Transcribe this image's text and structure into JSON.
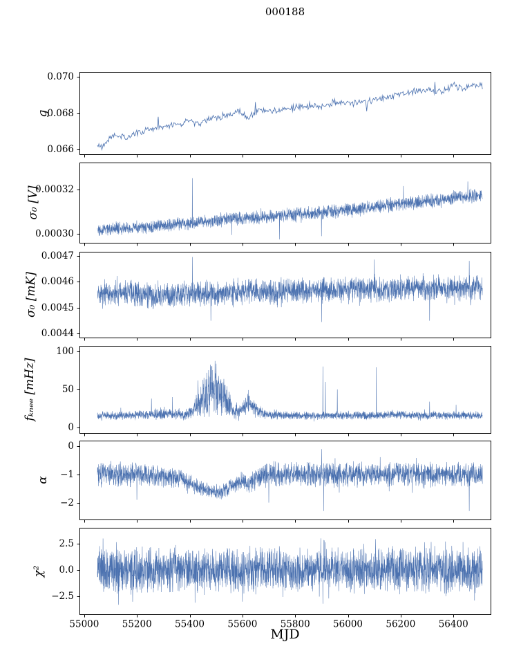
{
  "chart_data": {
    "type": "line",
    "title": "000188",
    "xlabel": "MJD",
    "line_color": "#4c72b0",
    "background": "#ffffff",
    "x_axis": {
      "lim": [
        54982,
        56541
      ],
      "ticks": [
        55000,
        55200,
        55400,
        55600,
        55800,
        56000,
        56200,
        56400
      ],
      "tick_labels": [
        "55000",
        "55200",
        "55400",
        "55600",
        "55800",
        "56000",
        "56200",
        "56400"
      ]
    },
    "x_data_range": [
      55050,
      56510
    ],
    "panels": [
      {
        "ylabel": "g",
        "ylim": [
          0.06575,
          0.07025
        ],
        "yticks": [
          0.066,
          0.068,
          0.07
        ],
        "ytick_labels": [
          "0.066",
          "0.068",
          "0.070"
        ],
        "n": 520,
        "lw": 0.8,
        "trend": [
          [
            55050,
            0.0662
          ],
          [
            55075,
            0.0663
          ],
          [
            55100,
            0.0667
          ],
          [
            55130,
            0.0668
          ],
          [
            55160,
            0.0666
          ],
          [
            55200,
            0.0669
          ],
          [
            55240,
            0.0671
          ],
          [
            55280,
            0.0672
          ],
          [
            55320,
            0.0673
          ],
          [
            55360,
            0.0674
          ],
          [
            55400,
            0.0676
          ],
          [
            55430,
            0.0674
          ],
          [
            55470,
            0.0677
          ],
          [
            55510,
            0.0678
          ],
          [
            55550,
            0.0679
          ],
          [
            55590,
            0.0681
          ],
          [
            55620,
            0.0677
          ],
          [
            55660,
            0.0682
          ],
          [
            55700,
            0.0681
          ],
          [
            55750,
            0.0682
          ],
          [
            55800,
            0.0683
          ],
          [
            55850,
            0.0684
          ],
          [
            55900,
            0.0684
          ],
          [
            55950,
            0.0686
          ],
          [
            56000,
            0.0685
          ],
          [
            56050,
            0.0686
          ],
          [
            56100,
            0.0687
          ],
          [
            56150,
            0.0689
          ],
          [
            56200,
            0.069
          ],
          [
            56250,
            0.0692
          ],
          [
            56300,
            0.0693
          ],
          [
            56350,
            0.0692
          ],
          [
            56400,
            0.0695
          ],
          [
            56440,
            0.0693
          ],
          [
            56480,
            0.0696
          ],
          [
            56510,
            0.0695
          ]
        ],
        "amp": [
          [
            55050,
            0.00022
          ],
          [
            56510,
            0.00022
          ]
        ],
        "spikes": [
          [
            55068,
            0.066
          ],
          [
            55280,
            0.0678
          ],
          [
            55648,
            0.0686
          ],
          [
            56070,
            0.0681
          ],
          [
            56330,
            0.0697
          ]
        ]
      },
      {
        "ylabel": "σ₀ [V]",
        "ylim": [
          0.000296,
          0.000332
        ],
        "yticks": [
          0.0003,
          0.00032
        ],
        "ytick_labels": [
          "0.00030",
          "0.00032"
        ],
        "n": 2300,
        "lw": 0.55,
        "tail_prob": 0.05,
        "tail_mult": 1.4,
        "trend": [
          [
            55050,
            0.000302
          ],
          [
            55150,
            0.0003025
          ],
          [
            55250,
            0.000303
          ],
          [
            55350,
            0.0003042
          ],
          [
            55450,
            0.0003052
          ],
          [
            55550,
            0.0003068
          ],
          [
            55650,
            0.0003072
          ],
          [
            55750,
            0.0003082
          ],
          [
            55850,
            0.0003092
          ],
          [
            55950,
            0.0003102
          ],
          [
            56050,
            0.0003112
          ],
          [
            56150,
            0.0003128
          ],
          [
            56250,
            0.000314
          ],
          [
            56350,
            0.0003155
          ],
          [
            56450,
            0.0003168
          ],
          [
            56510,
            0.0003175
          ]
        ],
        "amp": [
          [
            55050,
            3.3e-06
          ],
          [
            56510,
            3.6e-06
          ]
        ],
        "spikes": [
          [
            55410,
            0.000325
          ],
          [
            55560,
            0.0002995
          ],
          [
            55740,
            0.0002975
          ],
          [
            55900,
            0.000299
          ],
          [
            56210,
            0.0003215
          ],
          [
            56455,
            0.0003235
          ]
        ]
      },
      {
        "ylabel": "σ₀ [mK]",
        "ylim": [
          0.004385,
          0.004715
        ],
        "yticks": [
          0.0044,
          0.0045,
          0.0046,
          0.0047
        ],
        "ytick_labels": [
          "0.0044",
          "0.0045",
          "0.0046",
          "0.0047"
        ],
        "n": 2400,
        "lw": 0.55,
        "tail_prob": 0.05,
        "tail_mult": 1.35,
        "trend": [
          [
            55050,
            0.004555
          ],
          [
            55130,
            0.00456
          ],
          [
            55200,
            0.00455
          ],
          [
            55280,
            0.00454
          ],
          [
            55360,
            0.00455
          ],
          [
            55410,
            0.004555
          ],
          [
            55500,
            0.004555
          ],
          [
            55560,
            0.00456
          ],
          [
            55620,
            0.004565
          ],
          [
            55700,
            0.00456
          ],
          [
            55800,
            0.004565
          ],
          [
            55900,
            0.004565
          ],
          [
            56000,
            0.00457
          ],
          [
            56100,
            0.00457
          ],
          [
            56200,
            0.004572
          ],
          [
            56300,
            0.004575
          ],
          [
            56400,
            0.004575
          ],
          [
            56510,
            0.004578
          ]
        ],
        "amp": [
          [
            55050,
            5.5e-05
          ],
          [
            56510,
            5.5e-05
          ]
        ],
        "spikes": [
          [
            55410,
            0.004695
          ],
          [
            55480,
            0.00445
          ],
          [
            55900,
            0.004445
          ],
          [
            56100,
            0.004685
          ],
          [
            56310,
            0.00445
          ],
          [
            56460,
            0.00468
          ]
        ]
      },
      {
        "ylabel": "fₖₙₑₑ [mHz]",
        "ylim": [
          -7,
          107
        ],
        "yticks": [
          0,
          50,
          100
        ],
        "ytick_labels": [
          "0",
          "50",
          "100"
        ],
        "n": 2400,
        "lw": 0.55,
        "clamp_min": 5,
        "tail_prob": 0.06,
        "tail_mult": 1.7,
        "trend": [
          [
            55050,
            16
          ],
          [
            55150,
            16
          ],
          [
            55250,
            17
          ],
          [
            55300,
            19
          ],
          [
            55340,
            17
          ],
          [
            55380,
            17
          ],
          [
            55410,
            20
          ],
          [
            55440,
            35
          ],
          [
            55470,
            48
          ],
          [
            55500,
            50
          ],
          [
            55530,
            40
          ],
          [
            55560,
            25
          ],
          [
            55590,
            22
          ],
          [
            55610,
            30
          ],
          [
            55630,
            32
          ],
          [
            55660,
            20
          ],
          [
            55700,
            17
          ],
          [
            55800,
            16
          ],
          [
            55900,
            16
          ],
          [
            56000,
            16
          ],
          [
            56100,
            16
          ],
          [
            56200,
            17
          ],
          [
            56300,
            16
          ],
          [
            56400,
            16
          ],
          [
            56510,
            16
          ]
        ],
        "amp": [
          [
            55050,
            6
          ],
          [
            55250,
            7
          ],
          [
            55300,
            10
          ],
          [
            55340,
            7
          ],
          [
            55410,
            9
          ],
          [
            55440,
            28
          ],
          [
            55470,
            40
          ],
          [
            55500,
            42
          ],
          [
            55530,
            30
          ],
          [
            55560,
            14
          ],
          [
            55590,
            10
          ],
          [
            55610,
            14
          ],
          [
            55630,
            15
          ],
          [
            55660,
            10
          ],
          [
            55700,
            6
          ],
          [
            56510,
            6
          ]
        ],
        "spikes": [
          [
            55255,
            38
          ],
          [
            55335,
            40
          ],
          [
            55905,
            80
          ],
          [
            55915,
            60
          ],
          [
            55960,
            50
          ],
          [
            56108,
            79
          ],
          [
            56310,
            34
          ],
          [
            56410,
            30
          ]
        ]
      },
      {
        "ylabel": "α",
        "ylim": [
          -2.6,
          0.2
        ],
        "yticks": [
          -2,
          -1,
          0
        ],
        "ytick_labels": [
          "−2",
          "−1",
          "0"
        ],
        "n": 2400,
        "lw": 0.55,
        "tail_prob": 0.05,
        "tail_mult": 1.4,
        "trend": [
          [
            55050,
            -1.0
          ],
          [
            55250,
            -1.0
          ],
          [
            55320,
            -1.15
          ],
          [
            55360,
            -1.1
          ],
          [
            55400,
            -1.3
          ],
          [
            55440,
            -1.5
          ],
          [
            55480,
            -1.6
          ],
          [
            55530,
            -1.6
          ],
          [
            55570,
            -1.35
          ],
          [
            55600,
            -1.2
          ],
          [
            55620,
            -1.4
          ],
          [
            55650,
            -1.15
          ],
          [
            55690,
            -1.0
          ],
          [
            55800,
            -1.0
          ],
          [
            56510,
            -1.0
          ]
        ],
        "amp": [
          [
            55050,
            0.5
          ],
          [
            55300,
            0.45
          ],
          [
            55400,
            0.35
          ],
          [
            55500,
            0.3
          ],
          [
            55560,
            0.32
          ],
          [
            55620,
            0.4
          ],
          [
            55690,
            0.5
          ],
          [
            56510,
            0.5
          ]
        ],
        "spikes": [
          [
            55200,
            -1.9
          ],
          [
            55700,
            -2.0
          ],
          [
            55900,
            -0.1
          ],
          [
            55908,
            -2.3
          ],
          [
            56460,
            -2.3
          ]
        ]
      },
      {
        "ylabel": "χ²",
        "ylim": [
          -4.2,
          4.0
        ],
        "yticks": [
          -2.5,
          0.0,
          2.5
        ],
        "ytick_labels": [
          "−2.5",
          "0.0",
          "2.5"
        ],
        "n": 2600,
        "lw": 0.55,
        "tail_prob": 0.08,
        "tail_mult": 1.3,
        "trend": [
          [
            55050,
            0
          ],
          [
            56510,
            0
          ]
        ],
        "amp": [
          [
            55050,
            2.4
          ],
          [
            56510,
            2.4
          ]
        ],
        "spikes": [
          [
            55130,
            -3.3
          ],
          [
            55420,
            -3.1
          ],
          [
            55600,
            -3.0
          ],
          [
            55897,
            3.0
          ],
          [
            55905,
            -3.2
          ],
          [
            55910,
            2.8
          ],
          [
            56480,
            -2.9
          ]
        ]
      }
    ]
  }
}
